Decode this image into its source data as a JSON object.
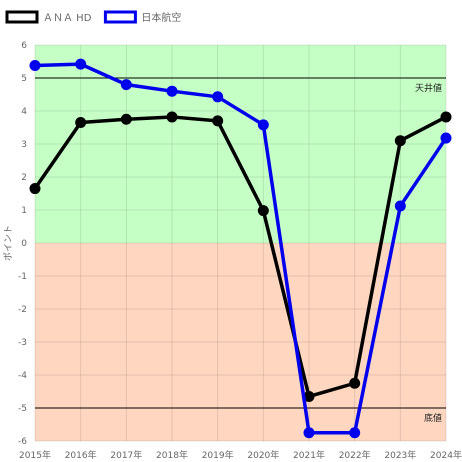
{
  "chart_data": {
    "type": "line",
    "categories": [
      "2015年",
      "2016年",
      "2017年",
      "2018年",
      "2019年",
      "2020年",
      "2021年",
      "2022年",
      "2023年",
      "2024年"
    ],
    "series": [
      {
        "name": "ＡＮＡ HD",
        "color": "#000000",
        "values": [
          1.65,
          3.65,
          3.75,
          3.82,
          3.7,
          0.98,
          -4.65,
          -4.25,
          3.1,
          3.82
        ]
      },
      {
        "name": "日本航空",
        "color": "#0000ee",
        "values": [
          5.38,
          5.42,
          4.8,
          4.6,
          4.43,
          3.58,
          -5.75,
          -5.75,
          1.12,
          3.18
        ]
      }
    ],
    "ylabel": "ポイント",
    "ylim": [
      -6,
      6
    ],
    "yticks": [
      -6,
      -5,
      -4,
      -3,
      -2,
      -1,
      0,
      1,
      2,
      3,
      4,
      5,
      6
    ],
    "grid": true,
    "legend": "top-left",
    "bands": [
      {
        "from": 0,
        "to": 6,
        "color": "#c6ffc6"
      },
      {
        "from": -6,
        "to": 0,
        "color": "#ffd6c0"
      }
    ],
    "reference_lines": [
      {
        "value": 5,
        "label": "天井値"
      },
      {
        "value": -5,
        "label": "底値"
      }
    ]
  }
}
